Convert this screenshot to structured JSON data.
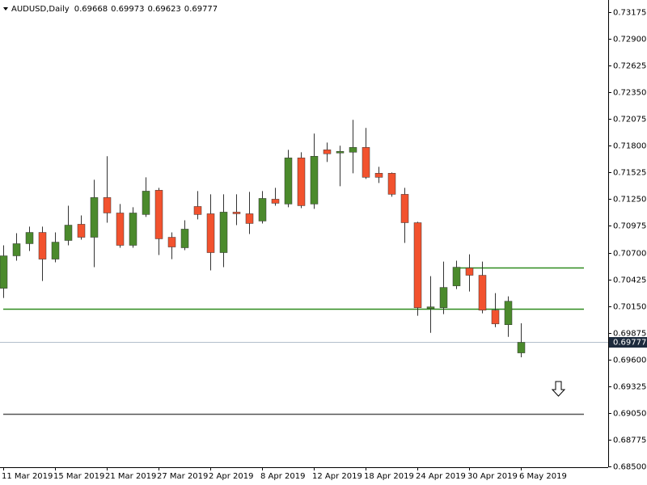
{
  "chart_data": {
    "type": "candlestick",
    "title": "AUDUSD,Daily",
    "categories": [
      "11 Mar 2019",
      null,
      null,
      null,
      "15 Mar 2019",
      null,
      null,
      null,
      "21 Mar 2019",
      null,
      null,
      null,
      "27 Mar 2019",
      null,
      null,
      null,
      "2 Apr 2019",
      null,
      null,
      null,
      "8 Apr 2019",
      null,
      null,
      null,
      "12 Apr 2019",
      null,
      null,
      null,
      "18 Apr 2019",
      null,
      null,
      null,
      "24 Apr 2019",
      null,
      null,
      null,
      "30 Apr 2019",
      null,
      null,
      null,
      "6 May 2019"
    ],
    "open": [
      0.70333,
      0.70667,
      0.70792,
      0.70908,
      0.70633,
      0.70825,
      0.70992,
      0.70858,
      0.71267,
      0.71108,
      0.70775,
      0.71092,
      0.71342,
      0.70858,
      0.7075,
      0.71175,
      0.711,
      0.707,
      0.71117,
      0.711,
      0.71025,
      0.7125,
      0.712,
      0.71675,
      0.712,
      0.71758,
      0.71725,
      0.71733,
      0.71783,
      0.71517,
      0.71517,
      0.713,
      0.71008,
      0.70125,
      0.70133,
      0.70358,
      0.70542,
      0.70467,
      0.70108,
      0.69958,
      0.69668
    ],
    "high": [
      0.70775,
      0.709,
      0.70967,
      0.70967,
      0.70908,
      0.71183,
      0.71083,
      0.7145,
      0.71692,
      0.712,
      0.71167,
      0.71475,
      0.71367,
      0.70908,
      0.71033,
      0.71333,
      0.713,
      0.713,
      0.713,
      0.71325,
      0.71333,
      0.71367,
      0.71758,
      0.71733,
      0.71925,
      0.71833,
      0.718,
      0.72067,
      0.71983,
      0.71583,
      0.71525,
      0.71367,
      0.71017,
      0.70458,
      0.70608,
      0.70617,
      0.70683,
      0.70608,
      0.70283,
      0.7025,
      0.69973
    ],
    "low": [
      0.70233,
      0.70617,
      0.70717,
      0.70408,
      0.706,
      0.70775,
      0.70833,
      0.7055,
      0.71008,
      0.7075,
      0.7075,
      0.71067,
      0.70675,
      0.70633,
      0.70725,
      0.71042,
      0.70517,
      0.7055,
      0.70983,
      0.70892,
      0.71,
      0.71183,
      0.71167,
      0.71158,
      0.7115,
      0.71633,
      0.71383,
      0.71517,
      0.71458,
      0.71417,
      0.71275,
      0.708,
      0.7005,
      0.69875,
      0.70067,
      0.70325,
      0.703,
      0.70075,
      0.69933,
      0.69833,
      0.69623
    ],
    "close": [
      0.70667,
      0.70792,
      0.70908,
      0.70633,
      0.70808,
      0.70983,
      0.70858,
      0.71267,
      0.71108,
      0.70775,
      0.71108,
      0.71333,
      0.70842,
      0.70758,
      0.70942,
      0.71092,
      0.707,
      0.71117,
      0.711,
      0.71,
      0.71258,
      0.71208,
      0.71675,
      0.71183,
      0.71692,
      0.71717,
      0.71742,
      0.71783,
      0.71475,
      0.71475,
      0.713,
      0.71008,
      0.70133,
      0.70142,
      0.70342,
      0.7055,
      0.70467,
      0.70108,
      0.69967,
      0.702,
      0.69777
    ],
    "up_color": "#4b8a2c",
    "down_color": "#f2522e",
    "ylim": [
      0.685,
      0.73175
    ],
    "yticks": [
      0.73175,
      {
        "value": 0.729,
        "label": "0.72900"
      },
      0.72625,
      {
        "value": 0.7235,
        "label": "0.72350"
      },
      0.72075,
      {
        "value": 0.718,
        "label": "0.71800"
      },
      0.71525,
      {
        "value": 0.7125,
        "label": "0.71250"
      },
      0.70975,
      {
        "value": 0.707,
        "label": "0.70700"
      },
      0.70425,
      {
        "value": 0.7015,
        "label": "0.70150"
      },
      0.69875,
      {
        "value": 0.696,
        "label": "0.69600"
      },
      0.69325,
      {
        "value": 0.6905,
        "label": "0.69050"
      },
      0.68775,
      {
        "value": 0.685,
        "label": "0.68500"
      }
    ],
    "hlines": [
      {
        "value": 0.7055,
        "color": "#2e8b1e"
      },
      {
        "value": 0.70125,
        "color": "#2e8b1e"
      },
      {
        "value": 0.69042,
        "color": "#555555"
      }
    ]
  }
}
